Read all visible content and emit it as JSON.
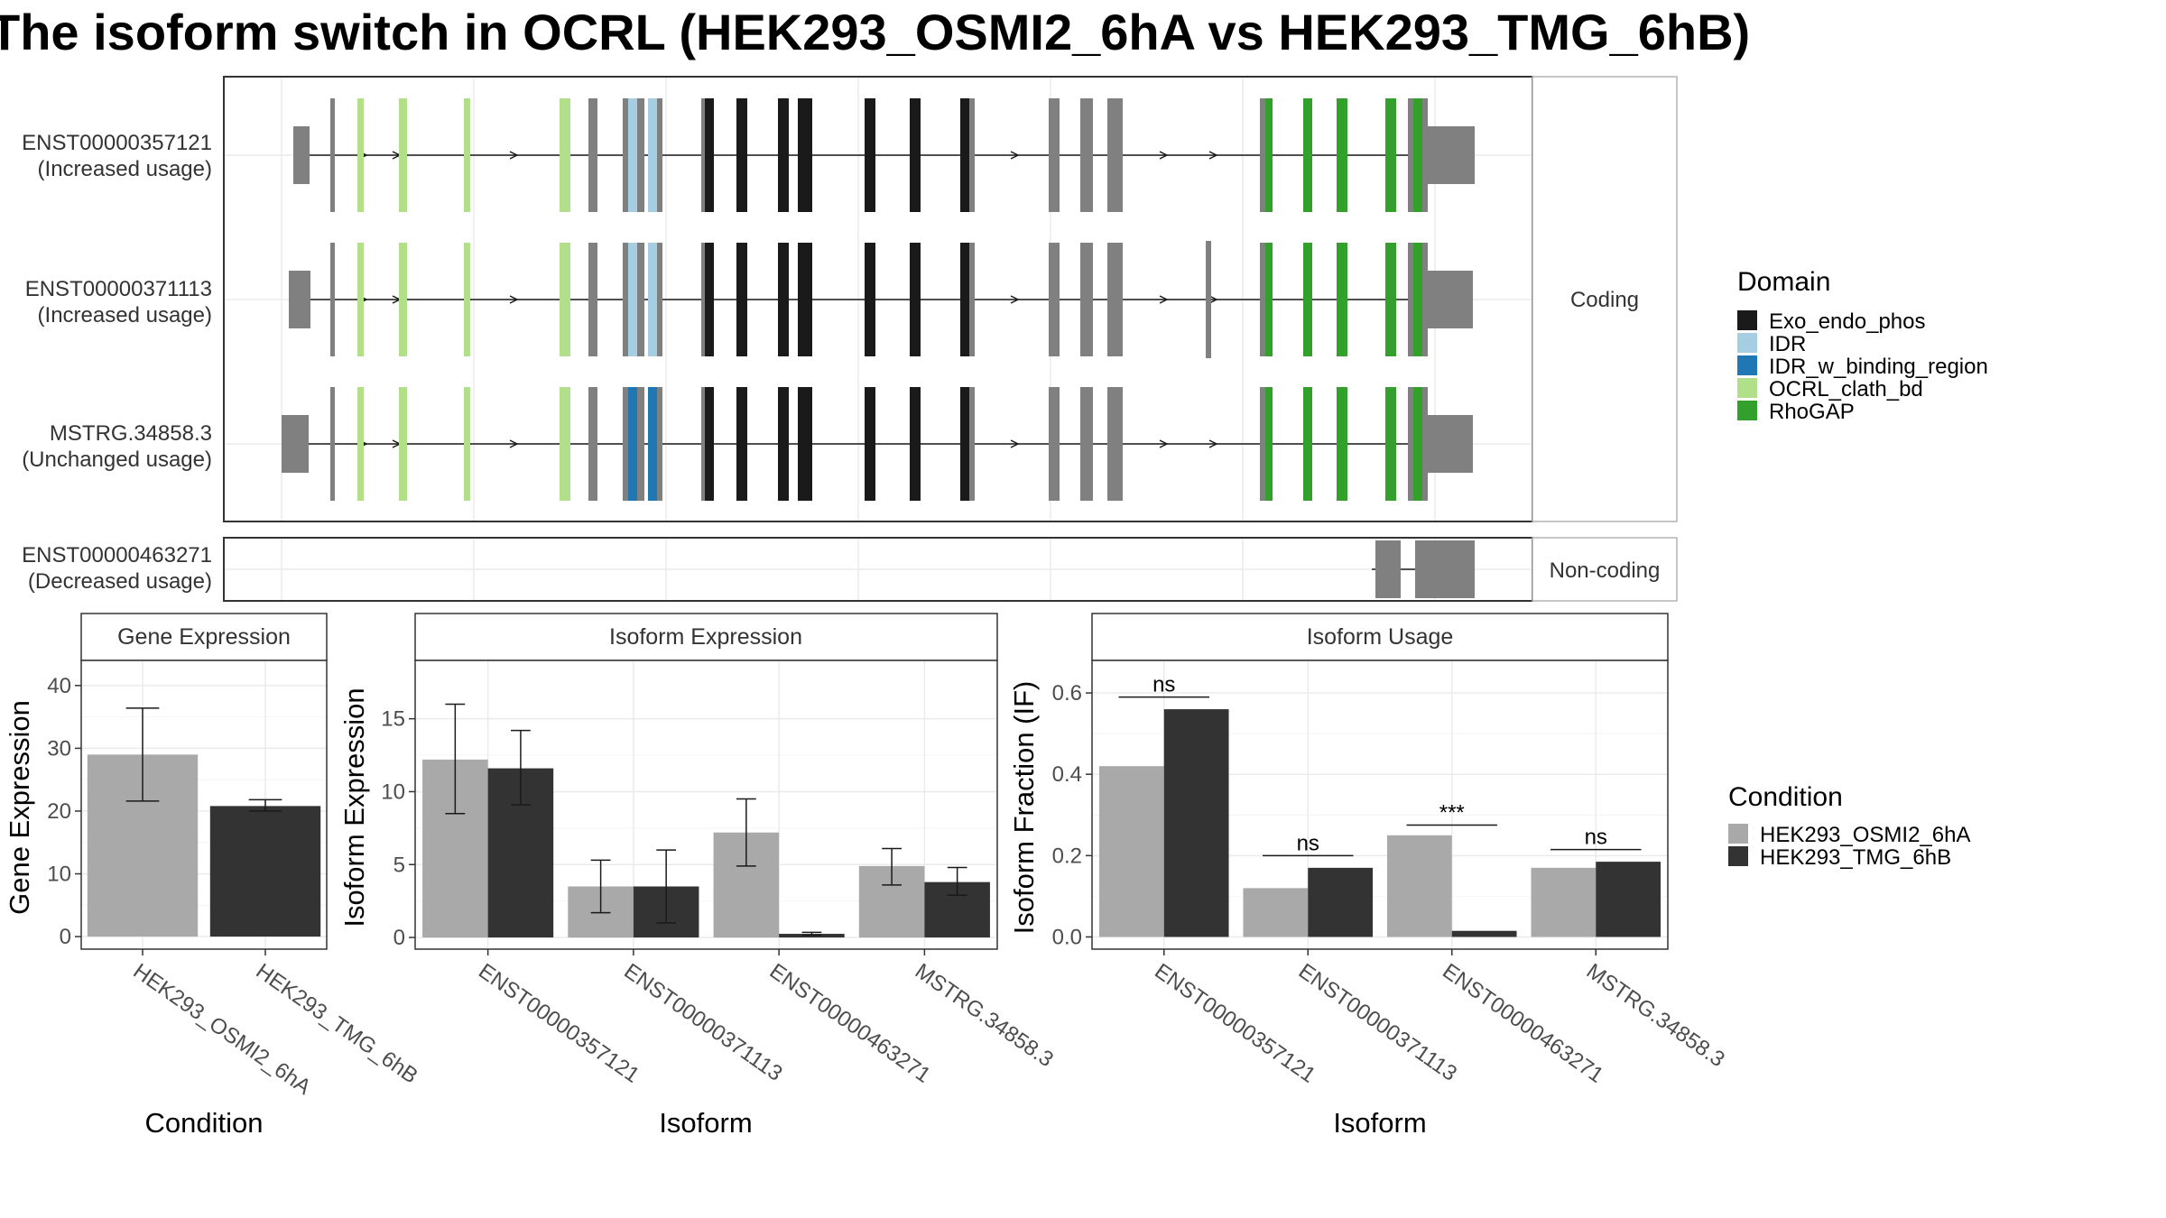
{
  "title": "The isoform switch in OCRL (HEK293_OSMI2_6hA vs HEK293_TMG_6hB)",
  "colors": {
    "cond1": "#a9a9a9",
    "cond2": "#333333",
    "noncoding_exon": "#808080",
    "Exo_endo_phos": "#1a1a1a",
    "IDR": "#a6cee3",
    "IDR_w_binding_region": "#1f78b4",
    "OCRL_clath_bd": "#b2df8a",
    "RhoGAP": "#33a02c"
  },
  "chart_data": [
    {
      "type": "gene-structure",
      "facets": [
        "Coding",
        "Non-coding"
      ],
      "isoforms": [
        {
          "id": "ENST00000357121",
          "label": "(Increased usage)",
          "facet": "Coding"
        },
        {
          "id": "ENST00000371113",
          "label": "(Increased usage)",
          "facet": "Coding"
        },
        {
          "id": "MSTRG.34858.3",
          "label": "(Unchanged usage)",
          "facet": "Coding"
        },
        {
          "id": "ENST00000463271",
          "label": "(Decreased usage)",
          "facet": "Non-coding"
        }
      ],
      "legend": {
        "title": "Domain",
        "entries": [
          "Exo_endo_phos",
          "IDR",
          "IDR_w_binding_region",
          "OCRL_clath_bd",
          "RhoGAP"
        ]
      }
    },
    {
      "type": "bar",
      "panel_title": "Gene Expression",
      "xlabel": "Condition",
      "ylabel": "Gene Expression",
      "ylim": [
        -2,
        44
      ],
      "yticks": [
        0,
        10,
        20,
        30,
        40
      ],
      "categories": [
        "HEK293_OSMI2_6hA",
        "HEK293_TMG_6hB"
      ],
      "values": [
        29.0,
        20.8
      ],
      "errors": [
        [
          21.6,
          36.4
        ],
        [
          20.0,
          21.8
        ]
      ]
    },
    {
      "type": "bar",
      "panel_title": "Isoform Expression",
      "xlabel": "Isoform",
      "ylabel": "Isoform Expression",
      "ylim": [
        -0.8,
        19.0
      ],
      "yticks": [
        0,
        5,
        10,
        15
      ],
      "categories": [
        "ENST00000357121",
        "ENST00000371113",
        "ENST00000463271",
        "MSTRG.34858.3"
      ],
      "series": [
        {
          "name": "HEK293_OSMI2_6hA",
          "values": [
            12.2,
            3.5,
            7.2,
            4.9
          ],
          "errors": [
            [
              8.5,
              16.0
            ],
            [
              1.7,
              5.3
            ],
            [
              4.9,
              9.5
            ],
            [
              3.6,
              6.1
            ]
          ]
        },
        {
          "name": "HEK293_TMG_6hB",
          "values": [
            11.6,
            3.5,
            0.25,
            3.8
          ],
          "errors": [
            [
              9.1,
              14.2
            ],
            [
              1.0,
              6.0
            ],
            [
              0.15,
              0.35
            ],
            [
              2.9,
              4.8
            ]
          ]
        }
      ]
    },
    {
      "type": "bar",
      "panel_title": "Isoform Usage",
      "xlabel": "Isoform",
      "ylabel": "Isoform Fraction (IF)",
      "ylim": [
        -0.03,
        0.68
      ],
      "yticks": [
        0.0,
        0.2,
        0.4,
        0.6
      ],
      "ytick_labels": [
        "0.0",
        "0.2",
        "0.4",
        "0.6"
      ],
      "categories": [
        "ENST00000357121",
        "ENST00000371113",
        "ENST00000463271",
        "MSTRG.34858.3"
      ],
      "series": [
        {
          "name": "HEK293_OSMI2_6hA",
          "values": [
            0.42,
            0.12,
            0.25,
            0.17
          ]
        },
        {
          "name": "HEK293_TMG_6hB",
          "values": [
            0.56,
            0.17,
            0.015,
            0.185
          ]
        }
      ],
      "significance": [
        "ns",
        "ns",
        "***",
        "ns"
      ],
      "sig_levels": [
        0.59,
        0.2,
        0.275,
        0.215
      ]
    }
  ],
  "condition_legend": {
    "title": "Condition",
    "entries": [
      "HEK293_OSMI2_6hA",
      "HEK293_TMG_6hB"
    ]
  }
}
